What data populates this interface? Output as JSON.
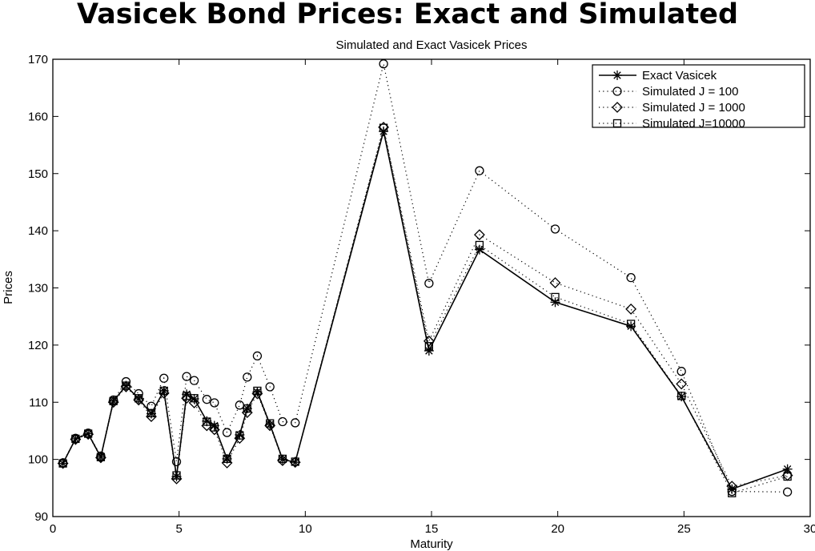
{
  "header": {
    "title": "Vasicek Bond Prices: Exact and Simulated"
  },
  "chart_data": {
    "type": "line",
    "title": "Simulated and Exact Vasicek Prices",
    "xlabel": "Maturity",
    "ylabel": "Prices",
    "xlim": [
      0,
      30
    ],
    "ylim": [
      90,
      170
    ],
    "xticks": [
      0,
      5,
      10,
      15,
      20,
      25,
      30
    ],
    "yticks": [
      90,
      100,
      110,
      120,
      130,
      140,
      150,
      160,
      170
    ],
    "grid": false,
    "legend_position": "top-right",
    "x": [
      0.4,
      0.9,
      1.4,
      1.9,
      2.4,
      2.9,
      3.4,
      3.9,
      4.4,
      4.9,
      5.3,
      5.6,
      6.1,
      6.4,
      6.9,
      7.4,
      7.7,
      8.1,
      8.6,
      9.1,
      9.6,
      13.1,
      14.9,
      16.9,
      19.9,
      22.9,
      24.9,
      26.9,
      29.1
    ],
    "series": [
      {
        "name": "Exact Vasicek",
        "marker": "asterisk",
        "line": "solid",
        "values": [
          99.3,
          103.6,
          104.5,
          100.4,
          110.2,
          112.9,
          110.6,
          108.0,
          112.0,
          97.0,
          111.4,
          110.6,
          106.7,
          105.9,
          100.1,
          104.3,
          108.9,
          111.8,
          106.1,
          100.0,
          99.5,
          157.4,
          119.0,
          136.7,
          127.5,
          123.3,
          111.0,
          94.8,
          98.3
        ]
      },
      {
        "name": "Simulated J = 100",
        "marker": "circle",
        "line": "dotted",
        "values": [
          99.4,
          103.7,
          104.6,
          100.6,
          110.4,
          113.6,
          111.5,
          109.3,
          114.2,
          99.6,
          114.5,
          113.8,
          110.5,
          109.9,
          104.7,
          109.5,
          114.4,
          118.1,
          112.7,
          106.6,
          106.4,
          169.2,
          130.8,
          150.5,
          140.3,
          131.8,
          115.4,
          94.4,
          94.3
        ]
      },
      {
        "name": "Simulated J = 1000",
        "marker": "diamond",
        "line": "dotted",
        "values": [
          99.3,
          103.5,
          104.4,
          100.3,
          110.0,
          112.7,
          110.4,
          107.5,
          111.6,
          96.6,
          110.7,
          109.9,
          105.9,
          105.2,
          99.4,
          103.7,
          108.2,
          111.5,
          105.9,
          99.8,
          99.5,
          158.1,
          120.7,
          139.3,
          130.9,
          126.3,
          113.2,
          95.3,
          97.2
        ]
      },
      {
        "name": "Simulated J=10000",
        "marker": "square",
        "line": "dotted",
        "values": [
          99.3,
          103.6,
          104.5,
          100.4,
          110.2,
          112.9,
          110.7,
          108.1,
          112.0,
          97.2,
          111.1,
          110.7,
          106.6,
          105.6,
          100.1,
          104.2,
          108.9,
          112.0,
          106.3,
          100.1,
          99.6,
          158.0,
          119.8,
          137.5,
          128.4,
          123.7,
          111.1,
          94.1,
          97.0
        ]
      }
    ]
  }
}
